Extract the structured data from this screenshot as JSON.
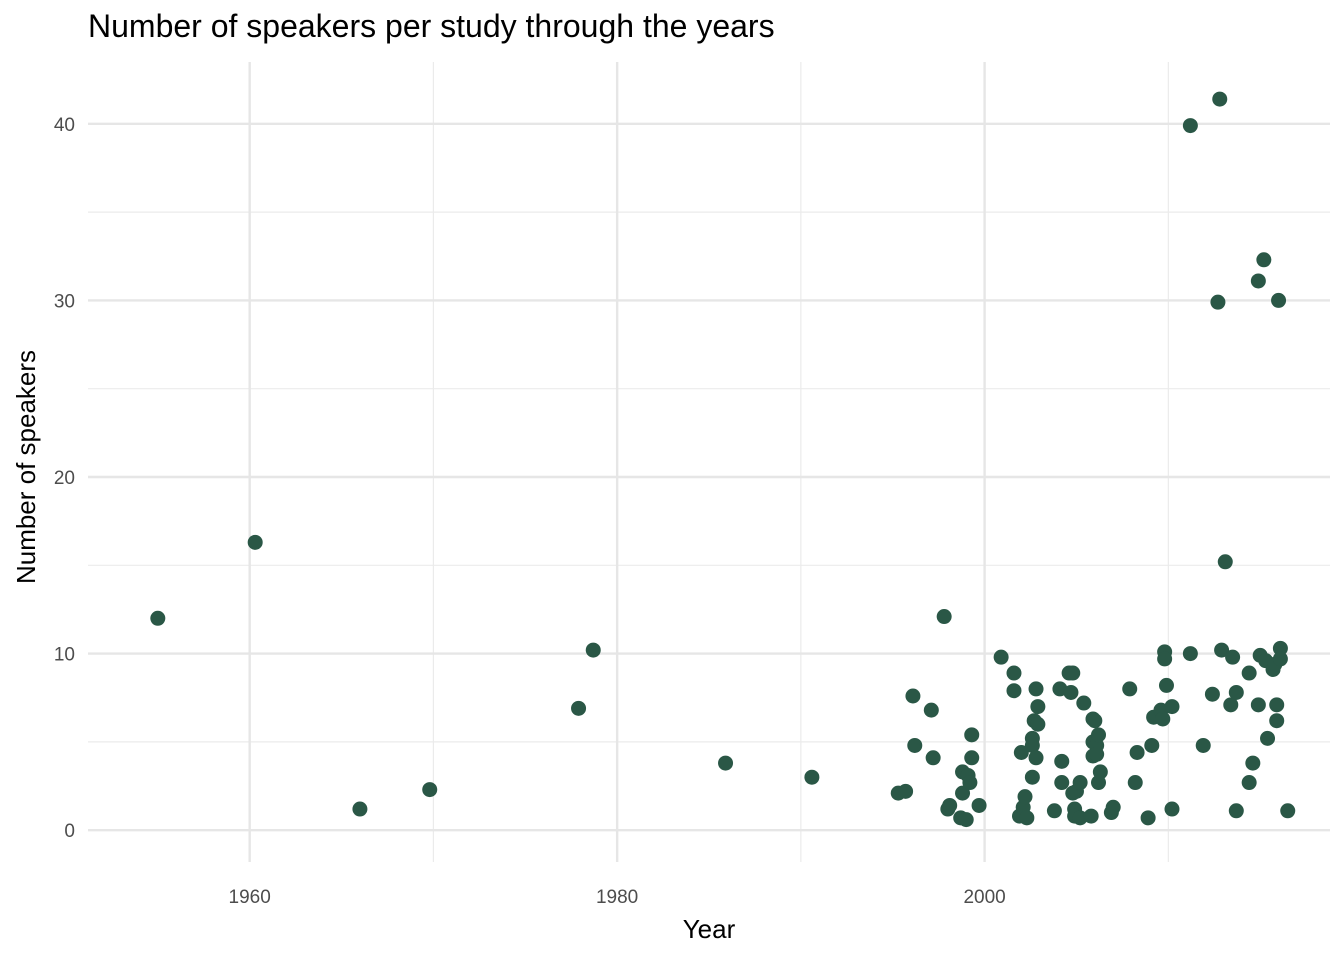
{
  "chart_data": {
    "type": "scatter",
    "title": "Number of speakers per study through the years",
    "xlabel": "Year",
    "ylabel": "Number of speakers",
    "xlim": [
      1951.2,
      2018.8
    ],
    "ylim": [
      -1.8,
      43.5
    ],
    "x_ticks": [
      1960,
      1980,
      2000
    ],
    "y_ticks": [
      0,
      10,
      20,
      30,
      40
    ],
    "x_minor": [
      1950,
      1970,
      1990,
      2010
    ],
    "y_minor": [
      5,
      15,
      25,
      35
    ],
    "grid": true,
    "point_color": "#2a5746",
    "points": [
      {
        "x": 1955.0,
        "y": 12.0
      },
      {
        "x": 1960.3,
        "y": 16.3
      },
      {
        "x": 1966.0,
        "y": 1.2
      },
      {
        "x": 1969.8,
        "y": 2.3
      },
      {
        "x": 1977.9,
        "y": 6.9
      },
      {
        "x": 1978.7,
        "y": 10.2
      },
      {
        "x": 1985.9,
        "y": 3.8
      },
      {
        "x": 1990.6,
        "y": 3.0
      },
      {
        "x": 1995.3,
        "y": 2.1
      },
      {
        "x": 1995.7,
        "y": 2.2
      },
      {
        "x": 1996.1,
        "y": 7.6
      },
      {
        "x": 1996.2,
        "y": 4.8
      },
      {
        "x": 1997.1,
        "y": 6.8
      },
      {
        "x": 1997.2,
        "y": 4.1
      },
      {
        "x": 1997.8,
        "y": 12.1
      },
      {
        "x": 1998.0,
        "y": 1.2
      },
      {
        "x": 1998.1,
        "y": 1.4
      },
      {
        "x": 1998.7,
        "y": 0.7
      },
      {
        "x": 1998.8,
        "y": 2.1
      },
      {
        "x": 1998.8,
        "y": 3.3
      },
      {
        "x": 1999.0,
        "y": 0.6
      },
      {
        "x": 1999.1,
        "y": 3.1
      },
      {
        "x": 1999.2,
        "y": 2.7
      },
      {
        "x": 1999.3,
        "y": 4.1
      },
      {
        "x": 1999.3,
        "y": 5.4
      },
      {
        "x": 1999.7,
        "y": 1.4
      },
      {
        "x": 2000.9,
        "y": 9.8
      },
      {
        "x": 2001.6,
        "y": 8.9
      },
      {
        "x": 2001.6,
        "y": 7.9
      },
      {
        "x": 2001.9,
        "y": 0.8
      },
      {
        "x": 2002.0,
        "y": 4.4
      },
      {
        "x": 2002.1,
        "y": 1.3
      },
      {
        "x": 2002.2,
        "y": 1.9
      },
      {
        "x": 2002.3,
        "y": 0.7
      },
      {
        "x": 2002.6,
        "y": 5.2
      },
      {
        "x": 2002.6,
        "y": 4.8
      },
      {
        "x": 2002.6,
        "y": 3.0
      },
      {
        "x": 2002.7,
        "y": 6.2
      },
      {
        "x": 2002.8,
        "y": 4.1
      },
      {
        "x": 2002.8,
        "y": 8.0
      },
      {
        "x": 2002.9,
        "y": 7.0
      },
      {
        "x": 2002.9,
        "y": 6.0
      },
      {
        "x": 2003.8,
        "y": 1.1
      },
      {
        "x": 2004.1,
        "y": 8.0
      },
      {
        "x": 2004.2,
        "y": 2.7
      },
      {
        "x": 2004.2,
        "y": 3.9
      },
      {
        "x": 2004.6,
        "y": 8.9
      },
      {
        "x": 2004.7,
        "y": 7.8
      },
      {
        "x": 2004.8,
        "y": 8.9
      },
      {
        "x": 2004.8,
        "y": 2.1
      },
      {
        "x": 2004.9,
        "y": 1.2
      },
      {
        "x": 2004.9,
        "y": 0.8
      },
      {
        "x": 2005.0,
        "y": 2.2
      },
      {
        "x": 2005.2,
        "y": 0.7
      },
      {
        "x": 2005.2,
        "y": 2.7
      },
      {
        "x": 2005.4,
        "y": 7.2
      },
      {
        "x": 2005.8,
        "y": 0.8
      },
      {
        "x": 2005.9,
        "y": 6.3
      },
      {
        "x": 2005.9,
        "y": 5.0
      },
      {
        "x": 2005.9,
        "y": 4.2
      },
      {
        "x": 2006.0,
        "y": 6.2
      },
      {
        "x": 2006.1,
        "y": 4.8
      },
      {
        "x": 2006.1,
        "y": 4.3
      },
      {
        "x": 2006.2,
        "y": 5.4
      },
      {
        "x": 2006.2,
        "y": 2.7
      },
      {
        "x": 2006.3,
        "y": 3.3
      },
      {
        "x": 2006.9,
        "y": 1.0
      },
      {
        "x": 2007.0,
        "y": 1.3
      },
      {
        "x": 2007.9,
        "y": 8.0
      },
      {
        "x": 2008.2,
        "y": 2.7
      },
      {
        "x": 2008.3,
        "y": 4.4
      },
      {
        "x": 2008.9,
        "y": 0.7
      },
      {
        "x": 2009.1,
        "y": 4.8
      },
      {
        "x": 2009.2,
        "y": 6.4
      },
      {
        "x": 2009.6,
        "y": 6.8
      },
      {
        "x": 2009.7,
        "y": 6.3
      },
      {
        "x": 2009.8,
        "y": 10.1
      },
      {
        "x": 2009.8,
        "y": 9.7
      },
      {
        "x": 2009.9,
        "y": 8.2
      },
      {
        "x": 2010.2,
        "y": 7.0
      },
      {
        "x": 2010.2,
        "y": 1.2
      },
      {
        "x": 2011.2,
        "y": 39.9
      },
      {
        "x": 2011.2,
        "y": 10.0
      },
      {
        "x": 2011.9,
        "y": 4.8
      },
      {
        "x": 2012.4,
        "y": 7.7
      },
      {
        "x": 2012.7,
        "y": 29.9
      },
      {
        "x": 2012.8,
        "y": 41.4
      },
      {
        "x": 2012.9,
        "y": 10.2
      },
      {
        "x": 2013.1,
        "y": 15.2
      },
      {
        "x": 2013.4,
        "y": 7.1
      },
      {
        "x": 2013.5,
        "y": 9.8
      },
      {
        "x": 2013.7,
        "y": 7.8
      },
      {
        "x": 2013.7,
        "y": 1.1
      },
      {
        "x": 2014.4,
        "y": 8.9
      },
      {
        "x": 2014.4,
        "y": 2.7
      },
      {
        "x": 2014.6,
        "y": 3.8
      },
      {
        "x": 2014.9,
        "y": 31.1
      },
      {
        "x": 2014.9,
        "y": 7.1
      },
      {
        "x": 2015.0,
        "y": 9.9
      },
      {
        "x": 2015.2,
        "y": 32.3
      },
      {
        "x": 2015.3,
        "y": 9.6
      },
      {
        "x": 2015.4,
        "y": 5.2
      },
      {
        "x": 2015.7,
        "y": 9.1
      },
      {
        "x": 2015.8,
        "y": 9.4
      },
      {
        "x": 2015.9,
        "y": 7.1
      },
      {
        "x": 2015.9,
        "y": 6.2
      },
      {
        "x": 2016.0,
        "y": 30.0
      },
      {
        "x": 2016.1,
        "y": 10.3
      },
      {
        "x": 2016.1,
        "y": 9.7
      },
      {
        "x": 2016.5,
        "y": 1.1
      }
    ]
  }
}
